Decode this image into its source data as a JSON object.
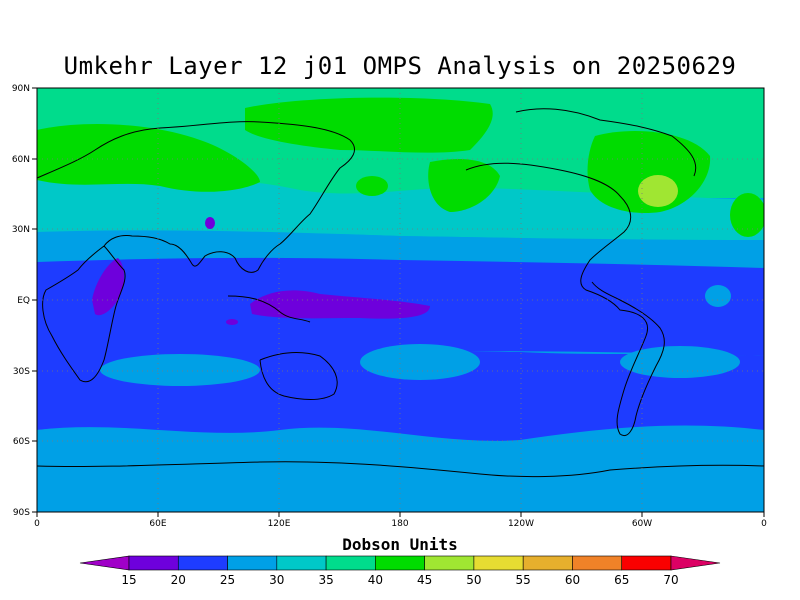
{
  "title": "Umkehr Layer 12 j01 OMPS Analysis on 20250629",
  "colorbar": {
    "title": "Dobson Units",
    "levels": [
      15,
      20,
      25,
      30,
      35,
      40,
      45,
      50,
      55,
      60,
      65,
      70
    ],
    "colors": [
      "#a000c8",
      "#6e00dc",
      "#1e3cff",
      "#00a0e6",
      "#00c8c8",
      "#00dc8c",
      "#00dc00",
      "#a0e632",
      "#e6dc32",
      "#e6af2d",
      "#f08228",
      "#fa0000",
      "#dc0064"
    ]
  },
  "map": {
    "lon_labels": [
      "0",
      "60E",
      "120E",
      "180",
      "120W",
      "60W",
      "0"
    ],
    "lat_labels": [
      "90N",
      "60N",
      "30N",
      "EQ",
      "30S",
      "60S",
      "90S"
    ],
    "grid": "dotted",
    "projection": "cylindrical equidistant"
  },
  "chart_data": {
    "type": "heatmap",
    "title": "Umkehr Layer 12 j01 OMPS Analysis on 20250629",
    "units": "Dobson Units",
    "xlabel": "",
    "ylabel": "",
    "x_range": [
      "0",
      "0"
    ],
    "y_range": [
      "90S",
      "90N"
    ],
    "zonal_bands": [
      {
        "lat": "90N-75N",
        "value_DU": "35-40"
      },
      {
        "lat": "75N-40N",
        "value_DU": "40-45 (peaks 45-50 near 50W 45N)"
      },
      {
        "lat": "40N-25N",
        "value_DU": "30-40"
      },
      {
        "lat": "25N-20N",
        "value_DU": "25-30"
      },
      {
        "lat": "20N-20S",
        "value_DU": "20-25 (15-20 over E. Africa and Indonesia)"
      },
      {
        "lat": "20S-55S",
        "value_DU": "20-30"
      },
      {
        "lat": "55S-90S",
        "value_DU": "25-30"
      }
    ]
  }
}
